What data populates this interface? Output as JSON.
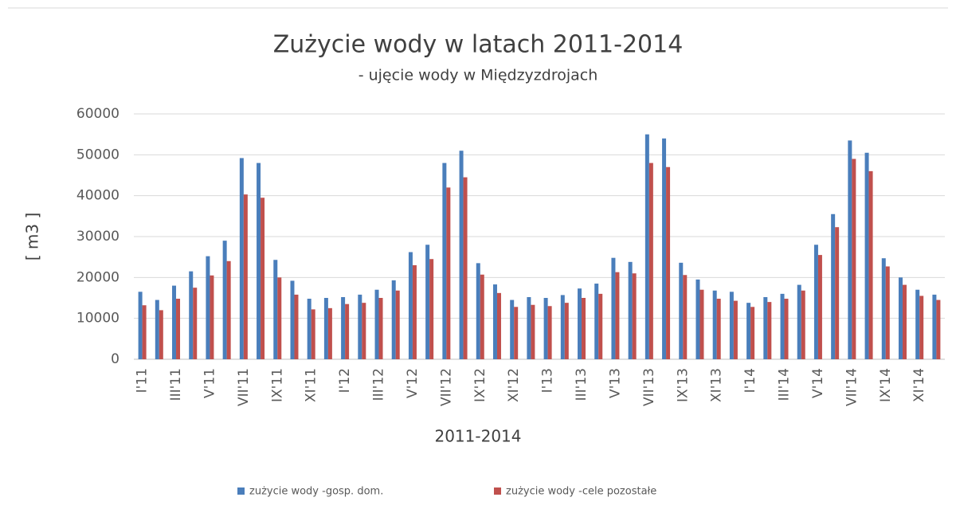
{
  "chart_data": {
    "type": "bar",
    "title": "Zużycie wody w latach 2011-2014",
    "subtitle": "- ujęcie wody w Międzyzdrojach",
    "x_label": "2011-2014",
    "y_label": "[ m3 ]",
    "categories": [
      "I'11",
      null,
      "III'11",
      null,
      "V'11",
      null,
      "VII'11",
      null,
      "IX'11",
      null,
      "XI'11",
      null,
      "I'12",
      null,
      "III'12",
      null,
      "V'12",
      null,
      "VII'12",
      null,
      "IX'12",
      null,
      "XI'12",
      null,
      "I'13",
      null,
      "III'13",
      null,
      "V'13",
      null,
      "VII'13",
      null,
      "IX'13",
      null,
      "XI'13",
      null,
      "I'14",
      null,
      "III'14",
      null,
      "V'14",
      null,
      "VII'14",
      null,
      "IX'14",
      null,
      "XI'14",
      null
    ],
    "series": [
      {
        "name": "zużycie wody -gosp. dom.",
        "color": "#4a7ebb",
        "values": [
          16500,
          14500,
          18000,
          21500,
          25200,
          29000,
          49200,
          48000,
          24300,
          19200,
          14800,
          15000,
          15200,
          15800,
          17000,
          19300,
          26200,
          28000,
          48000,
          51000,
          23500,
          18300,
          14500,
          15200,
          15000,
          15700,
          17300,
          18500,
          24800,
          23800,
          55000,
          54000,
          23600,
          19500,
          16800,
          16500,
          13800,
          15200,
          16000,
          18200,
          28000,
          35500,
          53500,
          50500,
          24700,
          20000,
          17000,
          15800
        ]
      },
      {
        "name": "zużycie wody -cele pozostałe",
        "color": "#c0504d",
        "values": [
          13200,
          12000,
          14800,
          17500,
          20500,
          24000,
          40300,
          39500,
          20000,
          15800,
          12200,
          12500,
          13500,
          13800,
          15000,
          16800,
          23000,
          24500,
          42000,
          44500,
          20700,
          16200,
          12800,
          13300,
          13000,
          13800,
          15000,
          16000,
          21300,
          21000,
          48000,
          47000,
          20600,
          17000,
          14800,
          14300,
          12800,
          14000,
          14800,
          16800,
          25500,
          32300,
          49000,
          46000,
          22700,
          18200,
          15500,
          14500
        ]
      }
    ],
    "ylim": [
      0,
      60000
    ],
    "yticks": [
      0,
      10000,
      20000,
      30000,
      40000,
      50000,
      60000
    ],
    "grid": true,
    "legend": "bottom"
  }
}
